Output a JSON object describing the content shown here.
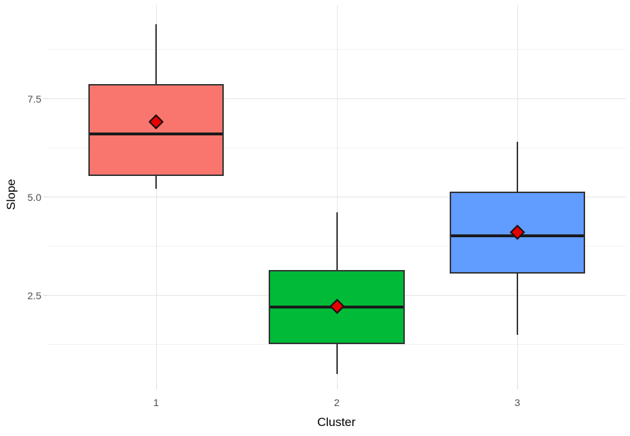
{
  "chart_data": {
    "type": "boxplot",
    "title": "",
    "xlabel": "Cluster",
    "ylabel": "Slope",
    "categories": [
      "1",
      "2",
      "3"
    ],
    "y_ticks": [
      2.5,
      5.0,
      7.5
    ],
    "y_tick_labels": [
      "2.5",
      "5.0",
      "7.5"
    ],
    "y_minor_ticks": [
      1.25,
      3.75,
      6.25,
      8.75
    ],
    "ylim": [
      0.22,
      9.87
    ],
    "grid": true,
    "legend": "none",
    "series": [
      {
        "category": "1",
        "min": 5.2,
        "q1": 5.53,
        "median": 6.59,
        "q3": 7.86,
        "max": 9.39,
        "mean": 6.9,
        "fill": "#F8766D"
      },
      {
        "category": "2",
        "min": 0.49,
        "q1": 1.26,
        "median": 2.2,
        "q3": 3.13,
        "max": 4.6,
        "mean": 2.22,
        "fill": "#00BA38"
      },
      {
        "category": "3",
        "min": 1.49,
        "q1": 3.04,
        "median": 4.01,
        "q3": 5.12,
        "max": 6.39,
        "mean": 4.1,
        "fill": "#619CFF"
      }
    ],
    "mean_marker": {
      "shape": "diamond",
      "fill": "#E60000",
      "stroke": "#111111"
    }
  },
  "colors": {
    "background": "#FFFFFF",
    "grid_major": "#E5E5E5",
    "grid_minor": "#F2F2F2",
    "box_border": "#333333",
    "median": "#1A1A1A",
    "whisker": "#333333",
    "axis_text": "#4D4D4D",
    "axis_title": "#000000",
    "tick_mark": "#D9D9D9"
  }
}
